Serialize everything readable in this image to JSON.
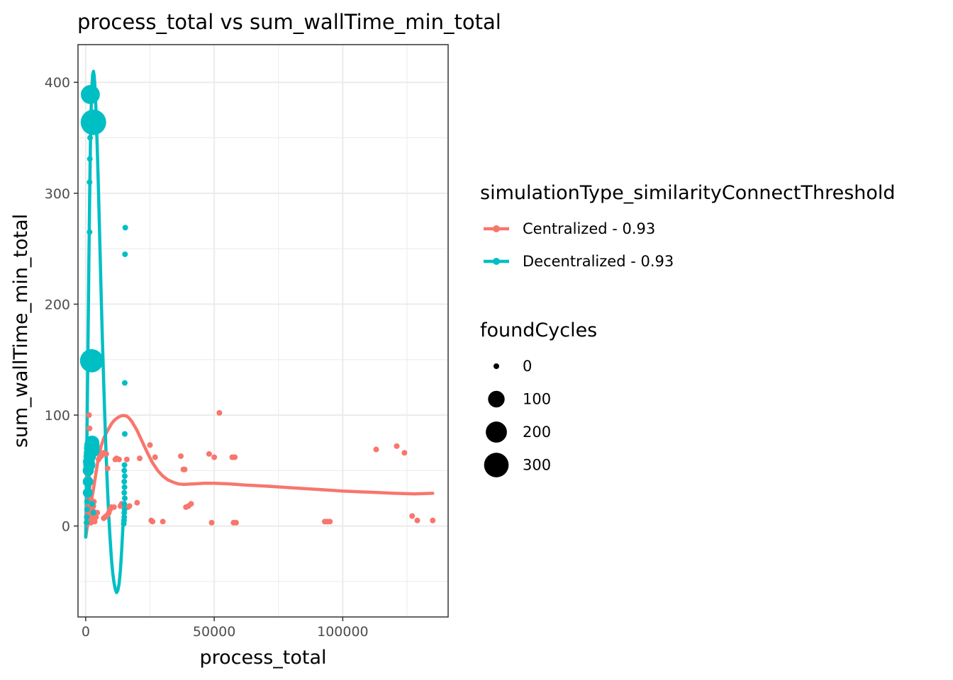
{
  "chart_data": {
    "type": "scatter",
    "title": "process_total  vs  sum_wallTime_min_total",
    "xlabel": "process_total",
    "ylabel": "sum_wallTime_min_total",
    "xlim": [
      -3000,
      141000
    ],
    "ylim": [
      -82,
      434
    ],
    "xticks": [
      0,
      50000,
      100000
    ],
    "xtick_labels": [
      "0",
      "50000",
      "100000"
    ],
    "yticks": [
      0,
      100,
      200,
      300,
      400
    ],
    "ytick_labels": [
      "0",
      "100",
      "200",
      "300",
      "400"
    ],
    "grid": true,
    "legend_color_title": "simulationType_similarityConnectThreshold",
    "legend_size_title": "foundCycles",
    "legend_placement": "right",
    "size_legend": [
      {
        "label": "0",
        "value": 0
      },
      {
        "label": "100",
        "value": 100
      },
      {
        "label": "200",
        "value": 200
      },
      {
        "label": "300",
        "value": 300
      }
    ],
    "series": [
      {
        "name": "Centralized - 0.93",
        "color": "#F8766D",
        "points": [
          [
            500,
            2,
            0
          ],
          [
            600,
            5,
            0
          ],
          [
            700,
            8,
            0
          ],
          [
            800,
            12,
            0
          ],
          [
            900,
            18,
            0
          ],
          [
            1000,
            25,
            0
          ],
          [
            1100,
            30,
            0
          ],
          [
            1200,
            35,
            0
          ],
          [
            800,
            40,
            0
          ],
          [
            900,
            45,
            0
          ],
          [
            1000,
            52,
            0
          ],
          [
            1200,
            60,
            0
          ],
          [
            1300,
            65,
            0
          ],
          [
            1000,
            70,
            0
          ],
          [
            1100,
            75,
            0
          ],
          [
            1500,
            88,
            0
          ],
          [
            1300,
            100,
            0
          ],
          [
            2000,
            3,
            0
          ],
          [
            2200,
            6,
            0
          ],
          [
            2500,
            10,
            0
          ],
          [
            2800,
            14,
            0
          ],
          [
            3000,
            18,
            0
          ],
          [
            3200,
            22,
            0
          ],
          [
            3500,
            4,
            0
          ],
          [
            4000,
            8,
            0
          ],
          [
            4500,
            12,
            0
          ],
          [
            5000,
            60,
            0
          ],
          [
            5500,
            62,
            0
          ],
          [
            6000,
            63,
            0
          ],
          [
            6500,
            65,
            0
          ],
          [
            7000,
            66,
            0
          ],
          [
            7500,
            65,
            0
          ],
          [
            8000,
            65,
            0
          ],
          [
            7000,
            7,
            0
          ],
          [
            7500,
            8,
            0
          ],
          [
            8000,
            9,
            0
          ],
          [
            8500,
            10,
            0
          ],
          [
            9000,
            12,
            0
          ],
          [
            9500,
            15,
            0
          ],
          [
            10000,
            17,
            0
          ],
          [
            8500,
            52,
            0
          ],
          [
            11000,
            17,
            0
          ],
          [
            11500,
            60,
            0
          ],
          [
            12000,
            61,
            0
          ],
          [
            13000,
            60,
            0
          ],
          [
            13500,
            18,
            0
          ],
          [
            14000,
            20,
            0
          ],
          [
            16000,
            60,
            0
          ],
          [
            16500,
            17,
            0
          ],
          [
            17000,
            18,
            0
          ],
          [
            20000,
            21,
            0
          ],
          [
            21000,
            61,
            0
          ],
          [
            25000,
            73,
            0
          ],
          [
            25500,
            5,
            0
          ],
          [
            26000,
            4,
            0
          ],
          [
            27000,
            62,
            0
          ],
          [
            30000,
            4,
            0
          ],
          [
            37000,
            63,
            0
          ],
          [
            38000,
            51,
            0
          ],
          [
            38500,
            51,
            0
          ],
          [
            39000,
            17,
            0
          ],
          [
            40000,
            18,
            0
          ],
          [
            41000,
            20,
            0
          ],
          [
            48000,
            65,
            0
          ],
          [
            49000,
            3,
            0
          ],
          [
            50000,
            62,
            0
          ],
          [
            52000,
            102,
            0
          ],
          [
            57000,
            62,
            0
          ],
          [
            57500,
            3,
            0
          ],
          [
            58000,
            62,
            0
          ],
          [
            58500,
            3,
            0
          ],
          [
            93000,
            4,
            0
          ],
          [
            94000,
            4,
            0
          ],
          [
            95000,
            4,
            0
          ],
          [
            113000,
            69,
            0
          ],
          [
            121000,
            72,
            0
          ],
          [
            124000,
            66,
            0
          ],
          [
            127000,
            9,
            0
          ],
          [
            129000,
            5,
            0
          ],
          [
            135000,
            5,
            0
          ]
        ],
        "trend": [
          [
            0,
            -10
          ],
          [
            1000,
            5
          ],
          [
            2000,
            20
          ],
          [
            3000,
            33
          ],
          [
            4000,
            48
          ],
          [
            5000,
            62
          ],
          [
            6000,
            72
          ],
          [
            7000,
            79
          ],
          [
            8000,
            84
          ],
          [
            9000,
            88
          ],
          [
            10000,
            92
          ],
          [
            11000,
            95
          ],
          [
            12000,
            97
          ],
          [
            13000,
            98.5
          ],
          [
            14000,
            99.5
          ],
          [
            15000,
            99.6
          ],
          [
            16000,
            99
          ],
          [
            17000,
            97
          ],
          [
            18000,
            94
          ],
          [
            20000,
            86
          ],
          [
            22000,
            76
          ],
          [
            24000,
            66
          ],
          [
            26000,
            57
          ],
          [
            28000,
            50
          ],
          [
            30000,
            45
          ],
          [
            32000,
            41.5
          ],
          [
            34000,
            39.5
          ],
          [
            36000,
            38
          ],
          [
            38000,
            37.5
          ],
          [
            42000,
            38
          ],
          [
            46000,
            38.5
          ],
          [
            50000,
            38.5
          ],
          [
            56000,
            38
          ],
          [
            62000,
            37
          ],
          [
            70000,
            36
          ],
          [
            80000,
            34.5
          ],
          [
            90000,
            33
          ],
          [
            100000,
            31.5
          ],
          [
            110000,
            30.5
          ],
          [
            120000,
            29.5
          ],
          [
            128000,
            29
          ],
          [
            135000,
            29.5
          ]
        ]
      },
      {
        "name": "Decentralized - 0.93",
        "color": "#00BFC4",
        "points": [
          [
            300,
            3,
            0
          ],
          [
            400,
            8,
            0
          ],
          [
            500,
            15,
            0
          ],
          [
            500,
            22,
            0
          ],
          [
            600,
            28,
            0
          ],
          [
            700,
            35,
            0
          ],
          [
            800,
            42,
            0
          ],
          [
            900,
            48,
            0
          ],
          [
            1000,
            55,
            0
          ],
          [
            1100,
            60,
            0
          ],
          [
            1200,
            65,
            0
          ],
          [
            1300,
            70,
            0
          ],
          [
            1500,
            265,
            0
          ],
          [
            1500,
            310,
            0
          ],
          [
            1600,
            331,
            0
          ],
          [
            1700,
            350,
            0
          ],
          [
            800,
            30,
            15
          ],
          [
            900,
            40,
            20
          ],
          [
            1000,
            50,
            25
          ],
          [
            1200,
            58,
            30
          ],
          [
            1400,
            55,
            35
          ],
          [
            1600,
            63,
            40
          ],
          [
            1800,
            66,
            45
          ],
          [
            2000,
            70,
            55
          ],
          [
            2200,
            73,
            60
          ],
          [
            2500,
            75,
            65
          ],
          [
            2800,
            72,
            50
          ],
          [
            3000,
            68,
            40
          ],
          [
            1800,
            389,
            150
          ],
          [
            2300,
            149,
            260
          ],
          [
            3000,
            364,
            330
          ],
          [
            2500,
            20,
            0
          ],
          [
            3000,
            12,
            0
          ],
          [
            14800,
            2,
            0
          ],
          [
            14900,
            5,
            0
          ],
          [
            15000,
            8,
            0
          ],
          [
            15000,
            12,
            0
          ],
          [
            15100,
            15,
            0
          ],
          [
            15000,
            20,
            0
          ],
          [
            15200,
            25,
            0
          ],
          [
            15000,
            30,
            0
          ],
          [
            15100,
            35,
            0
          ],
          [
            15000,
            40,
            0
          ],
          [
            15200,
            45,
            0
          ],
          [
            15000,
            50,
            0
          ],
          [
            15100,
            55,
            0
          ],
          [
            15200,
            83,
            0
          ],
          [
            15200,
            129,
            0
          ],
          [
            15300,
            245,
            0
          ],
          [
            15400,
            269,
            0
          ]
        ],
        "trend": [
          [
            0,
            -10
          ],
          [
            300,
            40
          ],
          [
            600,
            100
          ],
          [
            900,
            165
          ],
          [
            1200,
            230
          ],
          [
            1500,
            290
          ],
          [
            1800,
            340
          ],
          [
            2100,
            375
          ],
          [
            2400,
            397
          ],
          [
            2700,
            407
          ],
          [
            3000,
            410
          ],
          [
            3300,
            406
          ],
          [
            3600,
            396
          ],
          [
            4000,
            375
          ],
          [
            4500,
            340
          ],
          [
            5000,
            300
          ],
          [
            5500,
            255
          ],
          [
            6000,
            210
          ],
          [
            6500,
            168
          ],
          [
            7000,
            128
          ],
          [
            7500,
            93
          ],
          [
            8000,
            60
          ],
          [
            8500,
            32
          ],
          [
            9000,
            8
          ],
          [
            9500,
            -12
          ],
          [
            10000,
            -29
          ],
          [
            10500,
            -42
          ],
          [
            11000,
            -51
          ],
          [
            11500,
            -57
          ],
          [
            12000,
            -60
          ],
          [
            12500,
            -58
          ],
          [
            13000,
            -52
          ],
          [
            13500,
            -40
          ],
          [
            14000,
            -22
          ],
          [
            14500,
            0
          ],
          [
            15000,
            20
          ]
        ]
      }
    ]
  }
}
